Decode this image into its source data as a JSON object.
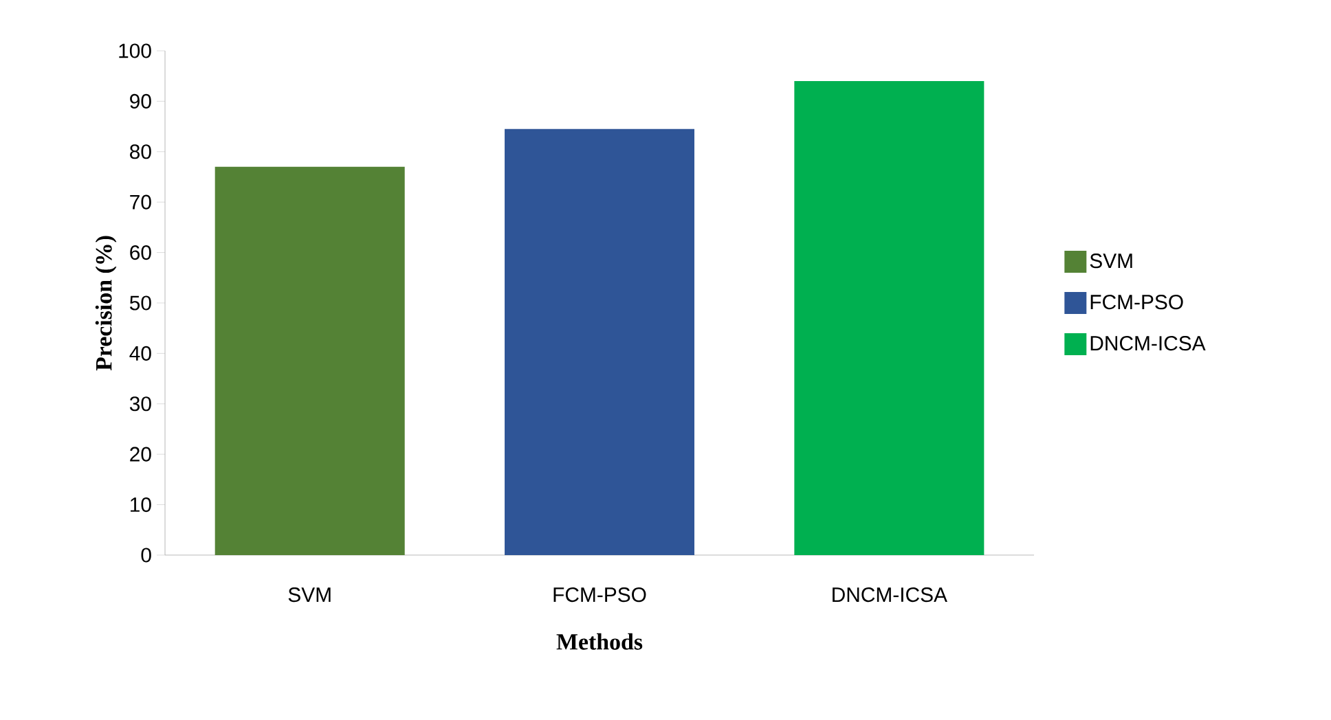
{
  "chart_data": {
    "type": "bar",
    "xlabel": "Methods",
    "ylabel": "Precision (%)",
    "categories": [
      "SVM",
      "FCM-PSO",
      "DNCM-ICSA"
    ],
    "series": [
      {
        "name": "SVM",
        "color": "#548235",
        "values": [
          77,
          null,
          null
        ]
      },
      {
        "name": "FCM-PSO",
        "color": "#2f5597",
        "values": [
          null,
          84.5,
          null
        ]
      },
      {
        "name": "DNCM-ICSA",
        "color": "#00b050",
        "values": [
          null,
          null,
          94
        ]
      }
    ],
    "ylim": [
      0,
      100
    ],
    "yticks": [
      0,
      10,
      20,
      30,
      40,
      50,
      60,
      70,
      80,
      90,
      100
    ],
    "grid": false,
    "legend": "right"
  }
}
